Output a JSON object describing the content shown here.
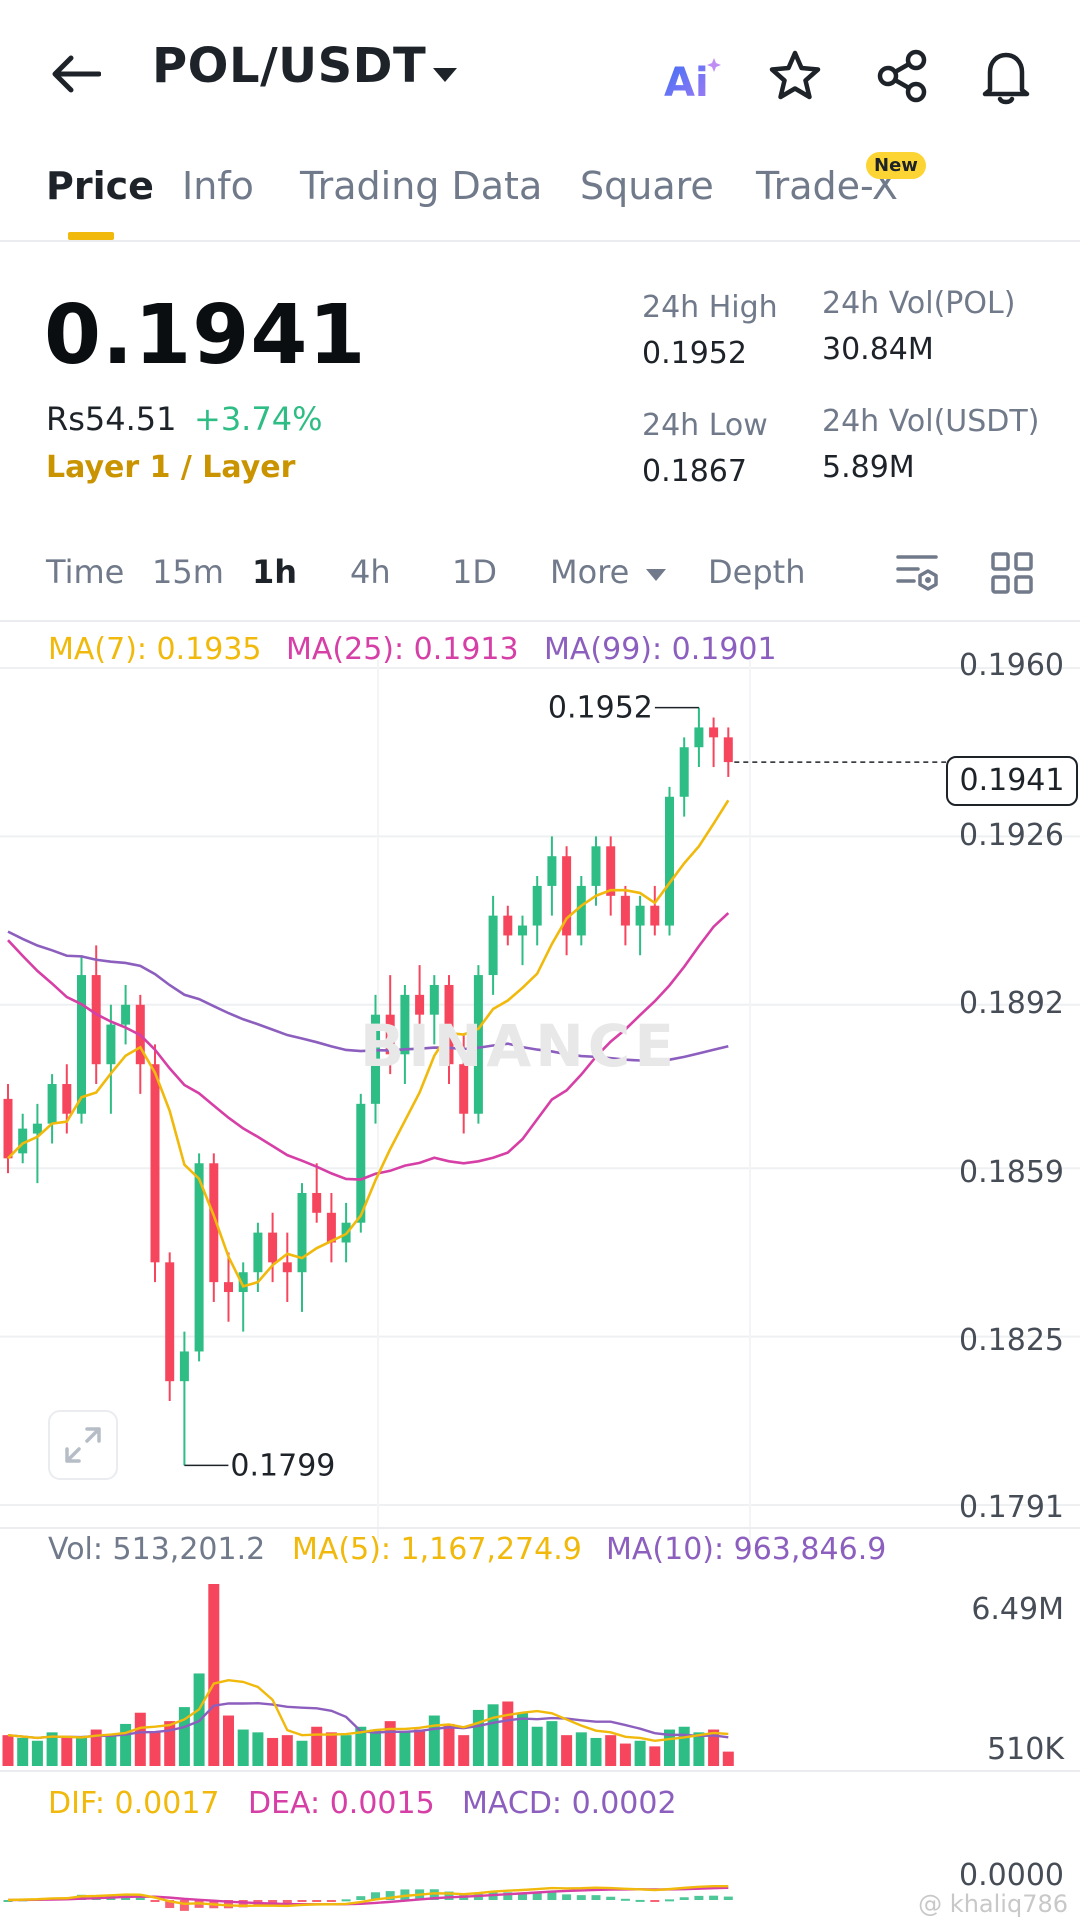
{
  "header": {
    "pair": "POL/USDT",
    "ai_label": "Ai"
  },
  "tabs": [
    {
      "label": "Price",
      "active": true
    },
    {
      "label": "Info",
      "active": false
    },
    {
      "label": "Trading Data",
      "active": false
    },
    {
      "label": "Square",
      "active": false
    },
    {
      "label": "Trade-X",
      "active": false,
      "badge": "New"
    }
  ],
  "ticker": {
    "last_price": "0.1941",
    "fiat_price": "Rs54.51",
    "change_pct": "+3.74%",
    "sector": "Layer 1 / Layer",
    "high_label": "24h High",
    "high_value": "0.1952",
    "low_label": "24h Low",
    "low_value": "0.1867",
    "vol_base_label": "24h Vol(POL)",
    "vol_base_value": "30.84M",
    "vol_quote_label": "24h Vol(USDT)",
    "vol_quote_value": "5.89M"
  },
  "intervals": [
    {
      "label": "Time",
      "active": false
    },
    {
      "label": "15m",
      "active": false
    },
    {
      "label": "1h",
      "active": true
    },
    {
      "label": "4h",
      "active": false
    },
    {
      "label": "1D",
      "active": false
    },
    {
      "label": "More",
      "active": false
    },
    {
      "label": "Depth",
      "active": false
    }
  ],
  "colors": {
    "up": "#2ebd85",
    "down": "#f6465d",
    "ma7": "#f0b90b",
    "ma25": "#d63fa6",
    "ma99": "#8c5fbf",
    "accent": "#f0b90b"
  },
  "chart_data": [
    {
      "type": "candlestick",
      "legend": {
        "ma7": "MA(7): 0.1935",
        "ma25": "MA(25): 0.1913",
        "ma99": "MA(99): 0.1901"
      },
      "y_ticks": [
        "0.1960",
        "0.1926",
        "0.1892",
        "0.1859",
        "0.1825",
        "0.1791"
      ],
      "ylim": [
        0.1791,
        0.196
      ],
      "current_price_tag": "0.1941",
      "high_marker": "0.1952",
      "low_marker": "0.1799",
      "candles": [
        [
          0.1873,
          0.1876,
          0.1858,
          0.1861
        ],
        [
          0.1862,
          0.187,
          0.186,
          0.1867
        ],
        [
          0.1866,
          0.1872,
          0.1856,
          0.1868
        ],
        [
          0.1868,
          0.1878,
          0.1864,
          0.1876
        ],
        [
          0.1876,
          0.188,
          0.1866,
          0.187
        ],
        [
          0.187,
          0.1902,
          0.1868,
          0.1898
        ],
        [
          0.1898,
          0.1904,
          0.1876,
          0.188
        ],
        [
          0.188,
          0.1892,
          0.187,
          0.1888
        ],
        [
          0.1888,
          0.1896,
          0.1884,
          0.1892
        ],
        [
          0.1892,
          0.1894,
          0.1874,
          0.188
        ],
        [
          0.188,
          0.1884,
          0.1836,
          0.184
        ],
        [
          0.184,
          0.1842,
          0.1812,
          0.1816
        ],
        [
          0.1816,
          0.1826,
          0.1799,
          0.1822
        ],
        [
          0.1822,
          0.1862,
          0.182,
          0.186
        ],
        [
          0.186,
          0.1862,
          0.1832,
          0.1836
        ],
        [
          0.1836,
          0.1842,
          0.1828,
          0.1834
        ],
        [
          0.1834,
          0.184,
          0.1826,
          0.1838
        ],
        [
          0.1838,
          0.1848,
          0.1834,
          0.1846
        ],
        [
          0.1846,
          0.185,
          0.1836,
          0.184
        ],
        [
          0.184,
          0.1846,
          0.1832,
          0.1838
        ],
        [
          0.1838,
          0.1856,
          0.183,
          0.1854
        ],
        [
          0.1854,
          0.186,
          0.1848,
          0.185
        ],
        [
          0.185,
          0.1854,
          0.184,
          0.1844
        ],
        [
          0.1844,
          0.1852,
          0.184,
          0.1848
        ],
        [
          0.1848,
          0.1874,
          0.1846,
          0.1872
        ],
        [
          0.1872,
          0.1894,
          0.1868,
          0.189
        ],
        [
          0.189,
          0.1898,
          0.1878,
          0.1882
        ],
        [
          0.1882,
          0.1896,
          0.1876,
          0.1894
        ],
        [
          0.1894,
          0.19,
          0.1886,
          0.189
        ],
        [
          0.189,
          0.1898,
          0.1884,
          0.1896
        ],
        [
          0.1896,
          0.1898,
          0.1876,
          0.188
        ],
        [
          0.188,
          0.1886,
          0.1866,
          0.187
        ],
        [
          0.187,
          0.19,
          0.1868,
          0.1898
        ],
        [
          0.1898,
          0.1914,
          0.1894,
          0.191
        ],
        [
          0.191,
          0.1912,
          0.1904,
          0.1906
        ],
        [
          0.1906,
          0.191,
          0.19,
          0.1908
        ],
        [
          0.1908,
          0.1918,
          0.1904,
          0.1916
        ],
        [
          0.1916,
          0.1926,
          0.191,
          0.1922
        ],
        [
          0.1922,
          0.1924,
          0.1902,
          0.1906
        ],
        [
          0.1906,
          0.1918,
          0.1904,
          0.1916
        ],
        [
          0.1916,
          0.1926,
          0.1912,
          0.1924
        ],
        [
          0.1924,
          0.1926,
          0.191,
          0.1914
        ],
        [
          0.1914,
          0.1916,
          0.1904,
          0.1908
        ],
        [
          0.1908,
          0.1914,
          0.1902,
          0.1912
        ],
        [
          0.1912,
          0.1916,
          0.1906,
          0.1908
        ],
        [
          0.1908,
          0.1936,
          0.1906,
          0.1934
        ],
        [
          0.1934,
          0.1946,
          0.193,
          0.1944
        ],
        [
          0.1944,
          0.1952,
          0.194,
          0.1948
        ],
        [
          0.1948,
          0.195,
          0.194,
          0.1946
        ],
        [
          0.1946,
          0.1948,
          0.1938,
          0.1941
        ]
      ]
    },
    {
      "type": "bar",
      "legend": {
        "vol": "Vol: 513,201.2",
        "ma5": "MA(5): 1,167,274.9",
        "ma10": "MA(10): 963,846.9"
      },
      "y_ticks": [
        "6.49M",
        "510K"
      ],
      "values": [
        1.1,
        1.0,
        0.9,
        1.2,
        1.0,
        1.0,
        1.3,
        1.1,
        1.5,
        1.9,
        1.2,
        1.6,
        2.1,
        3.3,
        6.49,
        1.8,
        1.3,
        1.2,
        1.0,
        1.1,
        0.9,
        1.4,
        1.2,
        1.1,
        1.4,
        1.3,
        1.6,
        1.2,
        1.3,
        1.8,
        1.5,
        1.1,
        2.0,
        2.2,
        2.3,
        1.9,
        1.4,
        1.6,
        1.1,
        1.2,
        1.0,
        1.1,
        0.8,
        0.9,
        0.7,
        1.3,
        1.4,
        1.2,
        1.3,
        0.513
      ]
    },
    {
      "type": "bar",
      "legend": {
        "dif": "DIF: 0.0017",
        "dea": "DEA: 0.0015",
        "macd": "MACD: 0.0002"
      },
      "y_ticks": [
        "0.0000"
      ]
    }
  ],
  "watermark": "BINANCE",
  "corner_watermark": "@ khaliq786"
}
